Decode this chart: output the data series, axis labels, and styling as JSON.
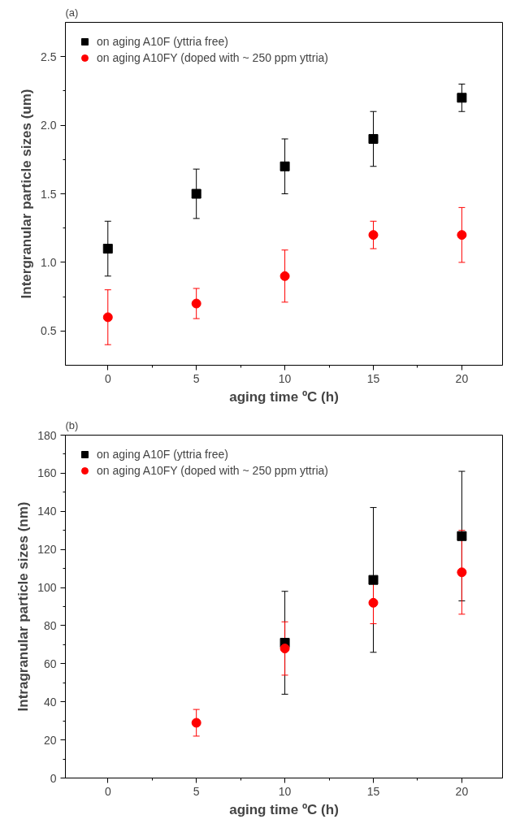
{
  "chart_data": [
    {
      "type": "scatter",
      "title": "(a)",
      "xlabel": "aging time ºC (h)",
      "ylabel": "Intergranular particle sizes (um)",
      "xlim": [
        -2.4,
        22.3
      ],
      "ylim": [
        0.25,
        2.75
      ],
      "xticks": [
        0,
        5,
        10,
        15,
        20
      ],
      "yticks": [
        0.5,
        {
          "value": 1,
          "label": "1.0"
        },
        1.5,
        {
          "value": 2,
          "label": "2.0"
        },
        2.5
      ],
      "grid": false,
      "legend": "top left",
      "series": [
        {
          "name": "on aging A10F (yttria free)",
          "color": "#000000",
          "marker": "square",
          "x": [
            0,
            5,
            10,
            15,
            20
          ],
          "values": [
            1.1,
            1.5,
            1.7,
            1.9,
            2.2
          ],
          "errors": [
            [
              0.9,
              1.3
            ],
            [
              1.32,
              1.68
            ],
            [
              1.5,
              1.9
            ],
            [
              1.7,
              2.1
            ],
            [
              2.1,
              2.3
            ]
          ]
        },
        {
          "name": "on aging A10FY (doped with ~ 250 ppm yttria)",
          "color": "#ff0000",
          "marker": "circle",
          "x": [
            0,
            5,
            10,
            15,
            20
          ],
          "values": [
            0.6,
            0.7,
            0.9,
            1.2,
            1.2
          ],
          "errors": [
            [
              0.4,
              0.8
            ],
            [
              0.59,
              0.81
            ],
            [
              0.71,
              1.09
            ],
            [
              1.1,
              1.3
            ],
            [
              1.0,
              1.4
            ]
          ]
        }
      ]
    },
    {
      "type": "scatter",
      "title": "(b)",
      "xlabel": "aging time ºC (h)",
      "ylabel": "Intragranular particle sizes (nm)",
      "xlim": [
        -2.4,
        22.3
      ],
      "ylim": [
        0,
        180
      ],
      "xticks": [
        0,
        5,
        10,
        15,
        20
      ],
      "yticks": [
        0,
        20,
        40,
        60,
        80,
        100,
        120,
        140,
        160,
        180
      ],
      "grid": false,
      "legend": "top left",
      "series": [
        {
          "name": "on aging A10F (yttria free)",
          "color": "#000000",
          "marker": "square",
          "x": [
            10,
            15,
            20
          ],
          "values": [
            71,
            104,
            127
          ],
          "errors": [
            [
              44,
              98
            ],
            [
              66,
              142
            ],
            [
              93,
              161
            ]
          ]
        },
        {
          "name": "on aging A10FY (doped with ~ 250 ppm yttria)",
          "color": "#ff0000",
          "marker": "circle",
          "x": [
            5,
            10,
            15,
            20
          ],
          "values": [
            29,
            68,
            92,
            108
          ],
          "errors": [
            [
              22,
              36
            ],
            [
              54,
              82
            ],
            [
              81,
              103
            ],
            [
              86,
              130
            ]
          ]
        }
      ]
    }
  ]
}
